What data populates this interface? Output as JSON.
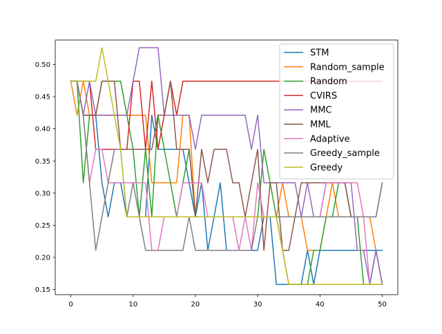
{
  "chart_data": {
    "type": "line",
    "title": "",
    "xlabel": "",
    "ylabel": "",
    "xlim": [
      -2.5,
      52.5
    ],
    "ylim": [
      0.142,
      0.538
    ],
    "xticks": [
      0,
      10,
      20,
      30,
      40,
      50
    ],
    "yticks": [
      0.15,
      0.2,
      0.25,
      0.3,
      0.35,
      0.4,
      0.45,
      0.5
    ],
    "ytick_labels": [
      "0.15",
      "0.20",
      "0.25",
      "0.30",
      "0.35",
      "0.40",
      "0.45",
      "0.50"
    ],
    "grid": false,
    "legend_position": "upper-right",
    "series": [
      {
        "name": "STM",
        "color": "#1f77b4",
        "values": [
          0.474,
          0.474,
          0.421,
          0.421,
          0.421,
          0.316,
          0.263,
          0.316,
          0.316,
          0.263,
          0.263,
          0.263,
          0.263,
          0.421,
          0.368,
          0.368,
          0.368,
          0.368,
          0.368,
          0.316,
          0.263,
          0.316,
          0.211,
          0.263,
          0.316,
          0.211,
          0.211,
          0.211,
          0.211,
          0.211,
          0.211,
          0.263,
          0.263,
          0.158,
          0.158,
          0.158,
          0.158,
          0.158,
          0.211,
          0.158,
          0.211,
          0.211,
          0.211,
          0.211,
          0.211,
          0.211,
          0.211,
          0.211,
          0.211,
          0.211,
          0.211
        ]
      },
      {
        "name": "Random_sample",
        "color": "#ff7f0e",
        "values": [
          0.474,
          0.421,
          0.474,
          0.421,
          0.421,
          0.421,
          0.421,
          0.421,
          0.421,
          0.421,
          0.421,
          0.421,
          0.421,
          0.316,
          0.316,
          0.316,
          0.316,
          0.316,
          0.421,
          0.421,
          0.263,
          0.263,
          0.263,
          0.263,
          0.263,
          0.263,
          0.263,
          0.263,
          0.263,
          0.263,
          0.263,
          0.263,
          0.263,
          0.263,
          0.316,
          0.263,
          0.263,
          0.263,
          0.211,
          0.211,
          0.211,
          0.263,
          0.316,
          0.263,
          0.263,
          0.263,
          0.263,
          0.263,
          0.263,
          0.211,
          0.158
        ]
      },
      {
        "name": "Random",
        "color": "#2ca02c",
        "values": [
          0.474,
          0.474,
          0.316,
          0.421,
          0.421,
          0.474,
          0.474,
          0.474,
          0.474,
          0.421,
          0.368,
          0.263,
          0.368,
          0.263,
          0.421,
          0.368,
          0.316,
          0.263,
          0.316,
          0.368,
          0.263,
          0.263,
          0.263,
          0.263,
          0.263,
          0.263,
          0.263,
          0.263,
          0.263,
          0.263,
          0.263,
          0.368,
          0.316,
          0.263,
          0.211,
          0.158,
          0.158,
          0.158,
          0.158,
          0.211,
          0.211,
          0.263,
          0.263,
          0.316,
          0.316,
          0.263,
          0.263,
          0.158,
          0.158,
          0.211,
          0.158
        ]
      },
      {
        "name": "CVIRS",
        "color": "#d62728",
        "values": [
          0.474,
          0.474,
          0.474,
          0.474,
          0.368,
          0.368,
          0.368,
          0.368,
          0.368,
          0.368,
          0.474,
          0.474,
          0.368,
          0.474,
          0.368,
          0.421,
          0.474,
          0.421,
          0.474,
          0.474,
          0.474,
          0.474,
          0.474,
          0.474,
          0.474,
          0.474,
          0.474,
          0.474,
          0.474,
          0.474,
          0.474,
          0.474,
          0.474,
          0.474,
          0.474,
          0.474,
          0.474,
          0.474,
          0.474,
          0.474,
          0.474,
          0.474,
          0.474,
          0.474,
          0.474,
          0.474,
          0.474,
          0.474,
          0.474,
          0.474,
          0.474
        ]
      },
      {
        "name": "MMC",
        "color": "#9467bd",
        "values": [
          0.474,
          0.474,
          0.421,
          0.474,
          0.421,
          0.421,
          0.421,
          0.421,
          0.421,
          0.421,
          0.474,
          0.526,
          0.526,
          0.526,
          0.526,
          0.421,
          0.421,
          0.421,
          0.421,
          0.421,
          0.368,
          0.421,
          0.421,
          0.421,
          0.421,
          0.421,
          0.421,
          0.421,
          0.421,
          0.368,
          0.421,
          0.316,
          0.316,
          0.316,
          0.316,
          0.316,
          0.316,
          0.263,
          0.316,
          0.263,
          0.263,
          0.316,
          0.316,
          0.316,
          0.316,
          0.316,
          0.211,
          0.211,
          0.158,
          0.211,
          0.158
        ]
      },
      {
        "name": "MML",
        "color": "#8c564b",
        "values": [
          0.474,
          0.474,
          0.421,
          0.421,
          0.421,
          0.474,
          0.474,
          0.474,
          0.368,
          0.368,
          0.368,
          0.368,
          0.368,
          0.368,
          0.421,
          0.421,
          0.474,
          0.368,
          0.368,
          0.368,
          0.263,
          0.368,
          0.316,
          0.368,
          0.368,
          0.368,
          0.316,
          0.316,
          0.263,
          0.316,
          0.368,
          0.211,
          0.316,
          0.316,
          0.211,
          0.211,
          0.263,
          0.316,
          0.316,
          0.316,
          0.316,
          0.316,
          0.316,
          0.316,
          0.316,
          0.263,
          0.263,
          0.263,
          0.263,
          0.263,
          0.316
        ]
      },
      {
        "name": "Adaptive",
        "color": "#e377c2",
        "values": [
          0.474,
          0.474,
          0.421,
          0.316,
          0.368,
          0.368,
          0.316,
          0.316,
          0.316,
          0.316,
          0.316,
          0.316,
          0.316,
          0.211,
          0.211,
          0.263,
          0.263,
          0.263,
          0.316,
          0.316,
          0.316,
          0.316,
          0.263,
          0.263,
          0.263,
          0.263,
          0.263,
          0.211,
          0.263,
          0.211,
          0.316,
          0.263,
          0.263,
          0.263,
          0.263,
          0.263,
          0.263,
          0.263,
          0.263,
          0.263,
          0.263,
          0.316,
          0.316,
          0.316,
          0.316,
          0.316,
          0.316,
          0.263,
          0.158,
          0.158,
          0.158
        ]
      },
      {
        "name": "Greedy_sample",
        "color": "#7f7f7f",
        "values": [
          0.474,
          0.474,
          0.421,
          0.316,
          0.211,
          0.263,
          0.316,
          0.368,
          0.368,
          0.263,
          0.316,
          0.263,
          0.211,
          0.211,
          0.211,
          0.211,
          0.211,
          0.211,
          0.211,
          0.263,
          0.211,
          0.211,
          0.211,
          0.211,
          0.211,
          0.211,
          0.211,
          0.211,
          0.211,
          0.211,
          0.263,
          0.263,
          0.263,
          0.263,
          0.263,
          0.263,
          0.263,
          0.263,
          0.263,
          0.263,
          0.263,
          0.263,
          0.263,
          0.263,
          0.263,
          0.263,
          0.263,
          0.263,
          0.263,
          0.263,
          0.316
        ]
      },
      {
        "name": "Greedy",
        "color": "#bcbd22",
        "values": [
          0.474,
          0.474,
          0.474,
          0.474,
          0.474,
          0.526,
          0.474,
          0.421,
          0.368,
          0.263,
          0.263,
          0.263,
          0.263,
          0.263,
          0.263,
          0.263,
          0.263,
          0.263,
          0.263,
          0.263,
          0.263,
          0.263,
          0.263,
          0.263,
          0.263,
          0.263,
          0.263,
          0.263,
          0.263,
          0.263,
          0.263,
          0.263,
          0.263,
          0.263,
          0.211,
          0.158,
          0.158,
          0.158,
          0.158,
          0.158,
          0.158,
          0.158,
          0.158,
          0.158,
          0.158,
          0.158,
          0.158,
          0.158,
          0.158,
          0.158,
          0.158
        ]
      }
    ]
  }
}
